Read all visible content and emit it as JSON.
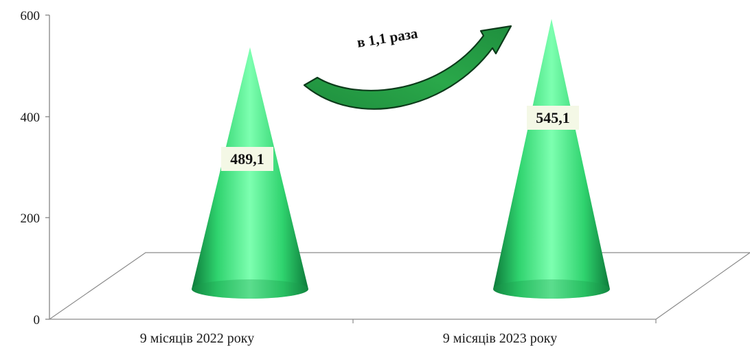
{
  "chart_data": {
    "type": "bar",
    "bar_shape": "cone",
    "categories": [
      "9 місяців 2022 року",
      "9 місяців 2023 року"
    ],
    "values": [
      489.1,
      545.1
    ],
    "value_labels": [
      "489,1",
      "545,1"
    ],
    "ylim": [
      0,
      600
    ],
    "yticks": [
      0,
      200,
      400,
      600
    ],
    "ytick_labels": [
      "0",
      "200",
      "400",
      "600"
    ],
    "title": "",
    "xlabel": "",
    "ylabel": "",
    "grid": false,
    "annotation": "в 1,1 раза",
    "colors": {
      "cone_light": "#7dffb0",
      "cone_mid": "#2fd36e",
      "cone_dark": "#0d7a3a",
      "arrow": "#1f8f3e",
      "label_bg": "#f4f8e6"
    }
  }
}
